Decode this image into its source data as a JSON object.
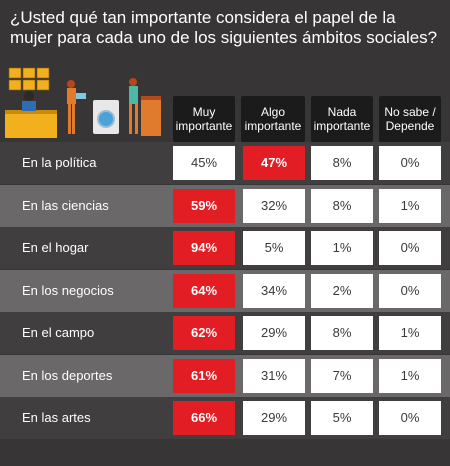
{
  "title": "¿Usted qué tan importante considera el papel de la mujer para cada uno de los siguientes ámbitos sociales?",
  "headers": [
    "Muy importante",
    "Algo importante",
    "Nada importante",
    "No sabe / Depende"
  ],
  "colors": {
    "highlight": "#e31d24",
    "row_dark": "#403e3e",
    "row_light": "#6a6868",
    "header": "#1c1b1b"
  },
  "chart_data": {
    "type": "table",
    "columns": [
      "Muy importante",
      "Algo importante",
      "Nada importante",
      "No sabe / Depende"
    ],
    "rows": [
      {
        "label": "En la política",
        "values": [
          "45%",
          "47%",
          "8%",
          "0%"
        ],
        "highlight": 1
      },
      {
        "label": "En las ciencias",
        "values": [
          "59%",
          "32%",
          "8%",
          "1%"
        ],
        "highlight": 0
      },
      {
        "label": "En el hogar",
        "values": [
          "94%",
          "5%",
          "1%",
          "0%"
        ],
        "highlight": 0
      },
      {
        "label": "En los negocios",
        "values": [
          "64%",
          "34%",
          "2%",
          "0%"
        ],
        "highlight": 0
      },
      {
        "label": "En el campo",
        "values": [
          "62%",
          "29%",
          "8%",
          "1%"
        ],
        "highlight": 0
      },
      {
        "label": "En los deportes",
        "values": [
          "61%",
          "31%",
          "7%",
          "1%"
        ],
        "highlight": 0
      },
      {
        "label": "En las artes",
        "values": [
          "66%",
          "29%",
          "5%",
          "0%"
        ],
        "highlight": 0
      }
    ]
  }
}
